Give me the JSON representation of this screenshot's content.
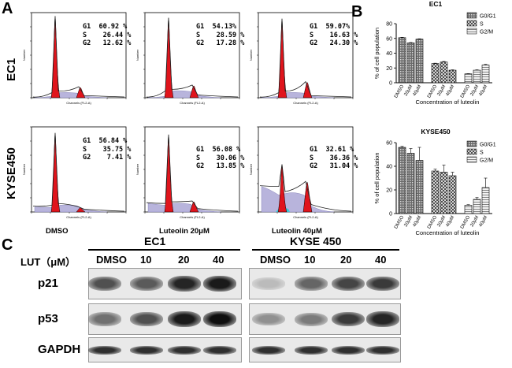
{
  "panel_labels": {
    "a": "A",
    "b": "B",
    "c": "C"
  },
  "flow": {
    "row_labels": [
      "EC1",
      "KYSE450"
    ],
    "column_captions": [
      "DMSO",
      "Luteolin 20μM",
      "Luteolin 40μM"
    ],
    "axis_x_label": "Channels (FL2-A)",
    "axis_y_label": "Number",
    "panels": [
      [
        {
          "g1": "G1  60.92 %",
          "s": "S    26.44 %",
          "g2": "G2   12.62 %"
        },
        {
          "g1": "G1  54.13%",
          "s": "S    28.59 %",
          "g2": "G2   17.28 %"
        },
        {
          "g1": "G1  59.07%",
          "s": "S    16.63 %",
          "g2": "G2   24.30 %"
        }
      ],
      [
        {
          "g1": "G1  56.84 %",
          "s": "S    35.75 %",
          "g2": "G2    7.41 %"
        },
        {
          "g1": "G1  56.08 %",
          "s": "S    30.06 %",
          "g2": "G2   13.85 %"
        },
        {
          "g1": "G1  32.61 %",
          "s": "S    36.36 %",
          "g2": "G2   31.04 %"
        }
      ]
    ]
  },
  "chart_data": [
    {
      "type": "bar",
      "title": "EC1",
      "xlabel": "Concentration of luteolin",
      "ylabel": "% of cell population",
      "ylim": [
        0,
        80
      ],
      "yticks": [
        0,
        20,
        40,
        60,
        80
      ],
      "group_names": [
        "G0/G1",
        "S",
        "G2/M"
      ],
      "categories": [
        "DMSO",
        "20μM",
        "40μM"
      ],
      "series": [
        {
          "name": "G0/G1",
          "values": [
            61,
            54,
            59
          ],
          "errors": [
            0.5,
            0.5,
            0.5
          ]
        },
        {
          "name": "S",
          "values": [
            26,
            28,
            17
          ],
          "errors": [
            0.5,
            0.8,
            0.5
          ]
        },
        {
          "name": "G2/M",
          "values": [
            12,
            17,
            24
          ],
          "errors": [
            0.3,
            0.5,
            0.8
          ]
        }
      ],
      "legend": "top-right"
    },
    {
      "type": "bar",
      "title": "KYSE450",
      "xlabel": "Concentration of luteolin",
      "ylabel": "% of cell population",
      "ylim": [
        0,
        60
      ],
      "yticks": [
        0,
        20,
        40,
        60
      ],
      "group_names": [
        "G0/G1",
        "S",
        "G2/M"
      ],
      "categories": [
        "DMSO",
        "20μM",
        "40μM"
      ],
      "series": [
        {
          "name": "G0/G1",
          "values": [
            56,
            51,
            45
          ],
          "errors": [
            0.8,
            4,
            11
          ]
        },
        {
          "name": "S",
          "values": [
            36,
            35,
            32
          ],
          "errors": [
            1.5,
            6,
            3
          ]
        },
        {
          "name": "G2/M",
          "values": [
            7,
            12,
            22
          ],
          "errors": [
            0.5,
            1.5,
            8
          ]
        }
      ],
      "legend": "top-right"
    }
  ],
  "western": {
    "header_label": "LUT（μM）",
    "groups": [
      "EC1",
      "KYSE 450"
    ],
    "lanes": [
      "DMSO",
      "10",
      "20",
      "40"
    ],
    "proteins": [
      "p21",
      "p53",
      "GAPDH"
    ],
    "intensities": {
      "p21": [
        [
          0.7,
          0.65,
          0.9,
          0.95
        ],
        [
          0.2,
          0.6,
          0.75,
          0.8
        ]
      ],
      "p53": [
        [
          0.55,
          0.7,
          0.95,
          1.0
        ],
        [
          0.4,
          0.5,
          0.8,
          0.9
        ]
      ],
      "GAPDH": [
        [
          0.85,
          0.85,
          0.85,
          0.85
        ],
        [
          0.85,
          0.85,
          0.85,
          0.85
        ]
      ]
    }
  }
}
